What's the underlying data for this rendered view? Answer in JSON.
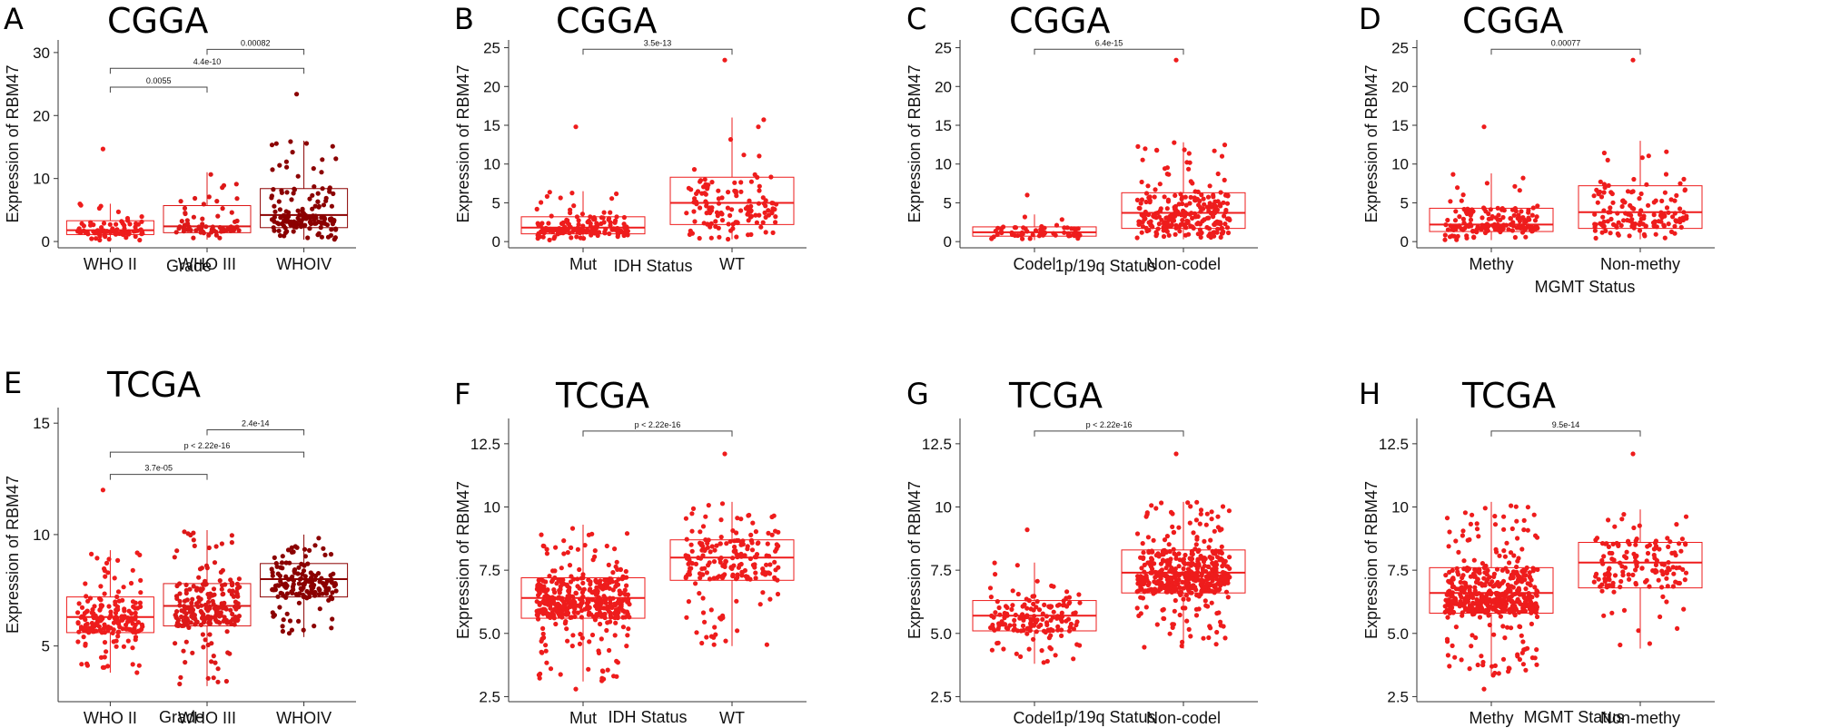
{
  "chart_data": [
    {
      "panel": "A",
      "type": "box",
      "title": "CGGA",
      "xlabel": "Grade",
      "ylabel": "Expression of RBM47",
      "categories": [
        "WHO II",
        "WHO III",
        "WHOIV"
      ],
      "ylim": [
        -1,
        32
      ],
      "yticks": [
        0,
        10,
        20,
        30
      ],
      "colors": [
        "#ee1c1c",
        "#dd1818",
        "#8b0000"
      ],
      "boxes": [
        {
          "min": 0.2,
          "q1": 1.1,
          "median": 1.8,
          "q3": 3.3,
          "max": 6.0,
          "outlier": 14.7,
          "n": 90
        },
        {
          "min": 0.3,
          "q1": 1.4,
          "median": 2.4,
          "q3": 5.7,
          "max": 11.0,
          "n": 70
        },
        {
          "min": 0.3,
          "q1": 2.2,
          "median": 4.2,
          "q3": 8.4,
          "max": 16.0,
          "outlier": 23.4,
          "n": 150
        }
      ],
      "comparisons": [
        {
          "from": 0,
          "to": 1,
          "label": "0.0055",
          "y": 24.5
        },
        {
          "from": 0,
          "to": 2,
          "label": "4.4e-10",
          "y": 27.5
        },
        {
          "from": 1,
          "to": 2,
          "label": "0.00082",
          "y": 30.5
        }
      ]
    },
    {
      "panel": "B",
      "type": "box",
      "title": "CGGA",
      "xlabel": "IDH   Status",
      "ylabel": "Expression of RBM47",
      "categories": [
        "Mut",
        "WT"
      ],
      "ylim": [
        -0.8,
        26
      ],
      "yticks": [
        0,
        5,
        10,
        15,
        20,
        25
      ],
      "colors": [
        "#ee1c1c",
        "#ee1c1c"
      ],
      "boxes": [
        {
          "min": 0.2,
          "q1": 1.0,
          "median": 1.8,
          "q3": 3.2,
          "max": 6.5,
          "outlier": 14.8,
          "n": 150
        },
        {
          "min": 0.3,
          "q1": 2.2,
          "median": 5.0,
          "q3": 8.3,
          "max": 16.0,
          "outlier": 23.4,
          "n": 130
        }
      ],
      "comparisons": [
        {
          "from": 0,
          "to": 1,
          "label": "3.5e-13",
          "y": 24.8
        }
      ]
    },
    {
      "panel": "C",
      "type": "box",
      "title": "CGGA",
      "xlabel": "1p/19q Status",
      "ylabel": "Expression of RBM47",
      "categories": [
        "Codel",
        "Non-codel"
      ],
      "ylim": [
        -0.8,
        26
      ],
      "yticks": [
        0,
        5,
        10,
        15,
        20,
        25
      ],
      "colors": [
        "#ee1c1c",
        "#ee1c1c"
      ],
      "boxes": [
        {
          "min": 0.2,
          "q1": 0.7,
          "median": 1.2,
          "q3": 1.9,
          "max": 3.5,
          "outlier": 6.0,
          "n": 60
        },
        {
          "min": 0.3,
          "q1": 1.7,
          "median": 3.7,
          "q3": 6.3,
          "max": 12.8,
          "outlier": 23.4,
          "n": 250
        }
      ],
      "comparisons": [
        {
          "from": 0,
          "to": 1,
          "label": "6.4e-15",
          "y": 24.8
        }
      ]
    },
    {
      "panel": "D",
      "type": "box",
      "title": "CGGA",
      "xlabel": "MGMT Status",
      "ylabel": "Expression of RBM47",
      "categories": [
        "Methy",
        "Non-methy"
      ],
      "ylim": [
        -0.8,
        26
      ],
      "yticks": [
        0,
        5,
        10,
        15,
        20,
        25
      ],
      "colors": [
        "#ee1c1c",
        "#ee1c1c"
      ],
      "boxes": [
        {
          "min": 0.2,
          "q1": 1.3,
          "median": 2.2,
          "q3": 4.3,
          "max": 8.8,
          "outlier": 14.8,
          "n": 160
        },
        {
          "min": 0.3,
          "q1": 1.7,
          "median": 3.8,
          "q3": 7.2,
          "max": 13.0,
          "outlier": 23.4,
          "n": 140
        }
      ],
      "comparisons": [
        {
          "from": 0,
          "to": 1,
          "label": "0.00077",
          "y": 24.8
        }
      ]
    },
    {
      "panel": "E",
      "type": "box",
      "title": "TCGA",
      "xlabel": "Grade",
      "ylabel": "Expression of RBM47",
      "categories": [
        "WHO II",
        "WHO III",
        "WHOIV"
      ],
      "ylim": [
        2.5,
        15.7
      ],
      "yticks": [
        5,
        10,
        15
      ],
      "colors": [
        "#ee1c1c",
        "#dd1818",
        "#8b0000"
      ],
      "boxes": [
        {
          "min": 3.8,
          "q1": 5.6,
          "median": 6.3,
          "q3": 7.2,
          "max": 9.3,
          "outlier": 12.0,
          "n": 200
        },
        {
          "min": 3.2,
          "q1": 5.9,
          "median": 6.8,
          "q3": 7.8,
          "max": 10.2,
          "n": 230
        },
        {
          "min": 5.4,
          "q1": 7.2,
          "median": 8.0,
          "q3": 8.7,
          "max": 10.0,
          "n": 150
        }
      ],
      "comparisons": [
        {
          "from": 0,
          "to": 1,
          "label": "3.7e-05",
          "y": 12.7
        },
        {
          "from": 0,
          "to": 2,
          "label": "p < 2.22e-16",
          "y": 13.7
        },
        {
          "from": 1,
          "to": 2,
          "label": "2.4e-14",
          "y": 14.7
        }
      ]
    },
    {
      "panel": "F",
      "type": "box",
      "title": "TCGA",
      "xlabel": "IDH   Status",
      "ylabel": "Expression of RBM47",
      "categories": [
        "Mut",
        "WT"
      ],
      "ylim": [
        2.3,
        13.5
      ],
      "yticks": [
        2.5,
        5.0,
        7.5,
        10,
        12.5
      ],
      "ytick_labels": [
        "2.5",
        "5.0",
        "7.5",
        "10",
        "12.5"
      ],
      "colors": [
        "#ee1c1c",
        "#ee1c1c"
      ],
      "boxes": [
        {
          "min": 3.1,
          "q1": 5.6,
          "median": 6.4,
          "q3": 7.2,
          "max": 9.3,
          "outlier": 2.8,
          "n": 430
        },
        {
          "min": 4.5,
          "q1": 7.1,
          "median": 8.0,
          "q3": 8.7,
          "max": 10.2,
          "outlier": 12.1,
          "n": 200
        }
      ],
      "comparisons": [
        {
          "from": 0,
          "to": 1,
          "label": "p < 2.22e-16",
          "y": 13.0
        }
      ]
    },
    {
      "panel": "G",
      "type": "box",
      "title": "TCGA",
      "xlabel": "1p/19q Status",
      "ylabel": "Expression of RBM47",
      "categories": [
        "Codel",
        "Non-codel"
      ],
      "ylim": [
        2.3,
        13.5
      ],
      "yticks": [
        2.5,
        5.0,
        7.5,
        10,
        12.5
      ],
      "ytick_labels": [
        "2.5",
        "5.0",
        "7.5",
        "10",
        "12.5"
      ],
      "colors": [
        "#ee1c1c",
        "#ee1c1c"
      ],
      "boxes": [
        {
          "min": 3.8,
          "q1": 5.1,
          "median": 5.7,
          "q3": 6.3,
          "max": 7.8,
          "outlier": 9.1,
          "n": 160
        },
        {
          "min": 4.4,
          "q1": 6.6,
          "median": 7.4,
          "q3": 8.3,
          "max": 10.2,
          "outlier": 12.1,
          "n": 480
        }
      ],
      "comparisons": [
        {
          "from": 0,
          "to": 1,
          "label": "p < 2.22e-16",
          "y": 13.0
        }
      ]
    },
    {
      "panel": "H",
      "type": "box",
      "title": "TCGA",
      "xlabel": "MGMT Status",
      "ylabel": "Expression of RBM47",
      "categories": [
        "Methy",
        "Non-methy"
      ],
      "ylim": [
        2.3,
        13.5
      ],
      "yticks": [
        2.5,
        5.0,
        7.5,
        10,
        12.5
      ],
      "ytick_labels": [
        "2.5",
        "5.0",
        "7.5",
        "10",
        "12.5"
      ],
      "colors": [
        "#ee1c1c",
        "#ee1c1c"
      ],
      "boxes": [
        {
          "min": 3.3,
          "q1": 5.8,
          "median": 6.6,
          "q3": 7.6,
          "max": 10.2,
          "outlier": 2.8,
          "n": 500
        },
        {
          "min": 4.4,
          "q1": 6.8,
          "median": 7.8,
          "q3": 8.6,
          "max": 9.9,
          "outlier": 12.1,
          "n": 150
        }
      ],
      "comparisons": [
        {
          "from": 0,
          "to": 1,
          "label": "9.5e-14",
          "y": 13.0
        }
      ]
    }
  ]
}
